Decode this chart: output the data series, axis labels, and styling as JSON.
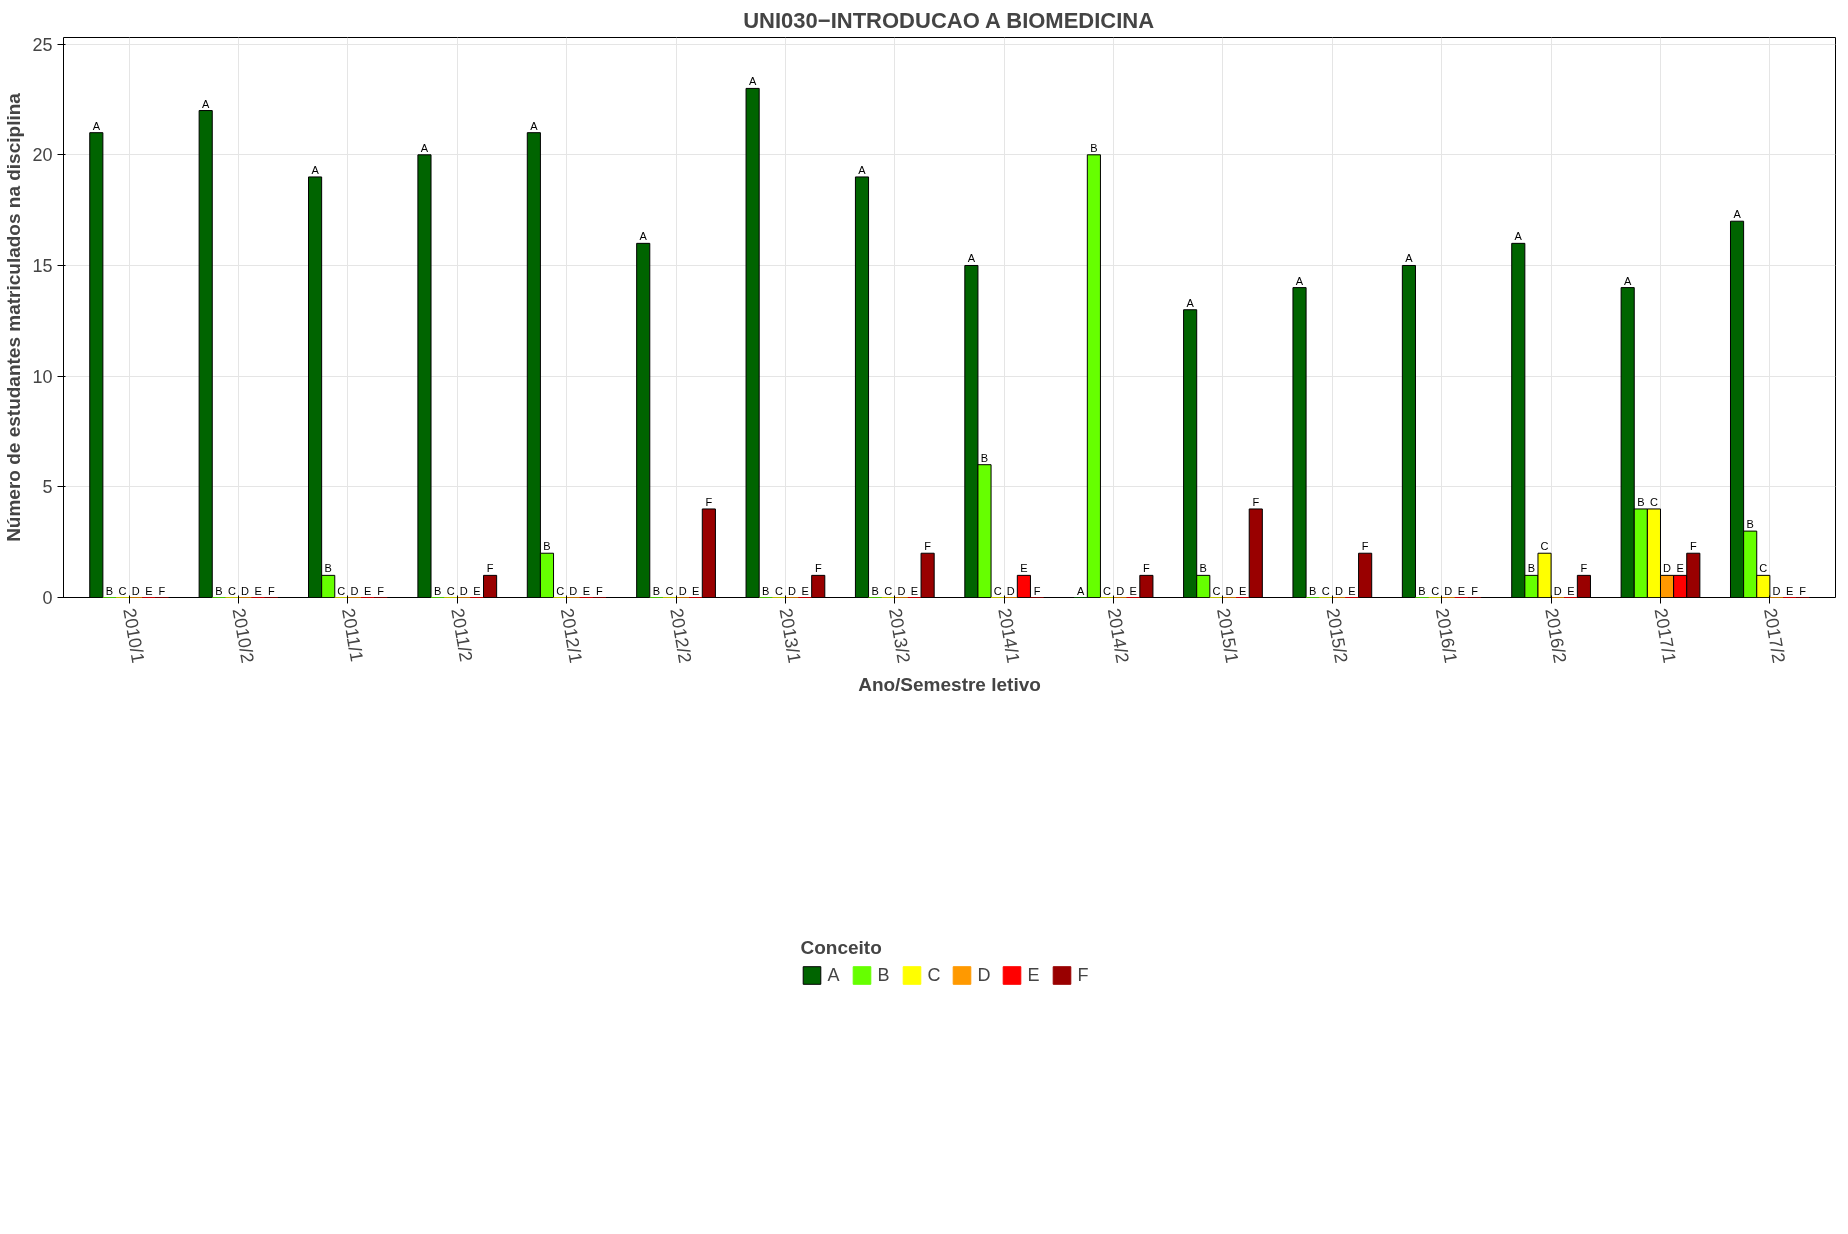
{
  "chart_data": {
    "type": "bar",
    "title": "UNI030−INTRODUCAO A BIOMEDICINA",
    "xlabel": "Ano/Semestre letivo",
    "ylabel": "Número de estudantes matriculados na disciplina",
    "legend_title": "Conceito",
    "categories": [
      "2010/1",
      "2010/2",
      "2011/1",
      "2011/2",
      "2012/1",
      "2012/2",
      "2013/1",
      "2013/2",
      "2014/1",
      "2014/2",
      "2015/1",
      "2015/2",
      "2016/1",
      "2016/2",
      "2017/1",
      "2017/2"
    ],
    "series": [
      {
        "name": "A",
        "color": "#006400",
        "values": [
          21,
          22,
          19,
          20,
          21,
          16,
          23,
          19,
          15,
          0,
          13,
          14,
          15,
          16,
          14,
          17
        ],
        "value_labels": [
          "A",
          "A",
          "A",
          "A",
          "A",
          "A",
          "A",
          "A",
          "A",
          "A",
          "A",
          "A",
          "A",
          "A",
          "A",
          "A"
        ]
      },
      {
        "name": "B",
        "color": "#66ff00",
        "values": [
          0,
          0,
          1,
          0,
          2,
          0,
          0,
          0,
          6,
          20,
          1,
          0,
          0,
          1,
          4,
          3
        ],
        "value_labels": [
          "B",
          "B",
          "B",
          "B",
          "B",
          "B",
          "B",
          "B",
          "B",
          "B",
          "B",
          "B",
          "B",
          "B",
          "B",
          "B"
        ]
      },
      {
        "name": "C",
        "color": "#ffff00",
        "values": [
          0,
          0,
          0,
          0,
          0,
          0,
          0,
          0,
          0,
          0,
          0,
          0,
          0,
          2,
          4,
          1
        ],
        "value_labels": [
          "C",
          "C",
          "C",
          "C",
          "C",
          "C",
          "C",
          "C",
          "C",
          "C",
          "C",
          "C",
          "C",
          "C",
          "C",
          "C"
        ]
      },
      {
        "name": "D",
        "color": "#ff9900",
        "values": [
          0,
          0,
          0,
          0,
          0,
          0,
          0,
          0,
          0,
          0,
          0,
          0,
          0,
          0,
          1,
          0
        ],
        "value_labels": [
          "D",
          "D",
          "D",
          "D",
          "D",
          "D",
          "D",
          "D",
          "D",
          "D",
          "D",
          "D",
          "D",
          "D",
          "D",
          "D"
        ]
      },
      {
        "name": "E",
        "color": "#ff0000",
        "values": [
          0,
          0,
          0,
          0,
          0,
          0,
          0,
          0,
          1,
          0,
          0,
          0,
          0,
          0,
          1,
          0
        ],
        "value_labels": [
          "E",
          "E",
          "E",
          "E",
          "E",
          "E",
          "E",
          "E",
          "E",
          "E",
          "E",
          "E",
          "E",
          "E",
          "E",
          "E"
        ]
      },
      {
        "name": "F",
        "color": "#990000",
        "values": [
          0,
          0,
          0,
          1,
          0,
          4,
          1,
          2,
          0,
          1,
          4,
          2,
          0,
          1,
          2,
          0
        ],
        "value_labels": [
          "F",
          "F",
          "F",
          "F",
          "F",
          "F",
          "F",
          "F",
          "F",
          "F",
          "F",
          "F",
          "F",
          "F",
          "F",
          "F"
        ]
      }
    ],
    "ylim": [
      0,
      25.3
    ],
    "yticks": [
      0,
      5,
      10,
      15,
      20,
      25
    ],
    "grid": true,
    "legend": "bottom"
  }
}
